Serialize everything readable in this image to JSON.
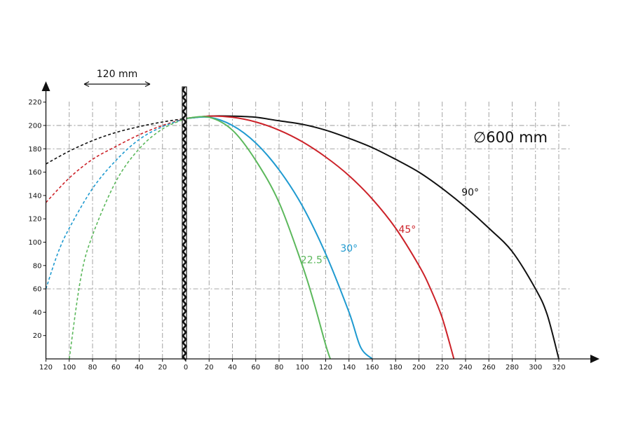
{
  "chart_data": {
    "type": "line",
    "x_ticks_left": [
      120,
      100,
      80,
      60,
      40,
      20,
      0
    ],
    "x_ticks_right": [
      0,
      20,
      40,
      60,
      80,
      100,
      120,
      140,
      160,
      180,
      200,
      220,
      240,
      260,
      280,
      300,
      320
    ],
    "y_ticks": [
      20,
      40,
      60,
      80,
      100,
      120,
      140,
      160,
      180,
      200,
      220
    ],
    "xlim": [
      -120,
      345
    ],
    "ylim": [
      0,
      225
    ],
    "grid": "dash-dot vertical every 20 for |x|<=100 and x>=0; dashed horizontal at 60, 180, 200",
    "annotations": {
      "span_label": "120 mm",
      "diameter_label": "∅600 mm"
    },
    "series": [
      {
        "name": "90°",
        "color": "#111111",
        "x": [
          -120,
          -100,
          -80,
          -60,
          -40,
          -20,
          0,
          20,
          40,
          60,
          80,
          100,
          120,
          140,
          160,
          180,
          200,
          220,
          240,
          260,
          280,
          300,
          310,
          320
        ],
        "y": [
          167,
          178,
          187,
          194,
          199,
          203,
          206,
          208,
          208,
          207,
          204,
          201,
          196,
          189,
          181,
          171,
          160,
          146,
          130,
          112,
          92,
          60,
          38,
          0
        ]
      },
      {
        "name": "45°",
        "color": "#cc2229",
        "x": [
          -120,
          -100,
          -80,
          -60,
          -40,
          -20,
          0,
          20,
          40,
          60,
          80,
          100,
          120,
          140,
          160,
          180,
          200,
          210,
          220,
          230
        ],
        "y": [
          134,
          155,
          171,
          182,
          192,
          200,
          206,
          208,
          207,
          203,
          196,
          186,
          173,
          157,
          137,
          112,
          80,
          60,
          35,
          0
        ]
      },
      {
        "name": "30°",
        "color": "#1f9ad0",
        "x": [
          -120,
          -110,
          -100,
          -80,
          -60,
          -40,
          -20,
          0,
          20,
          40,
          60,
          80,
          100,
          120,
          140,
          150,
          160
        ],
        "y": [
          60,
          90,
          112,
          146,
          170,
          188,
          199,
          206,
          207,
          200,
          185,
          162,
          131,
          90,
          40,
          10,
          0
        ]
      },
      {
        "name": "22.5°",
        "color": "#5cb85c",
        "x": [
          -100,
          -90,
          -80,
          -60,
          -40,
          -20,
          0,
          20,
          40,
          60,
          80,
          100,
          110,
          120,
          124
        ],
        "y": [
          0,
          70,
          106,
          152,
          180,
          197,
          206,
          207,
          196,
          170,
          134,
          80,
          48,
          12,
          0
        ]
      }
    ]
  }
}
